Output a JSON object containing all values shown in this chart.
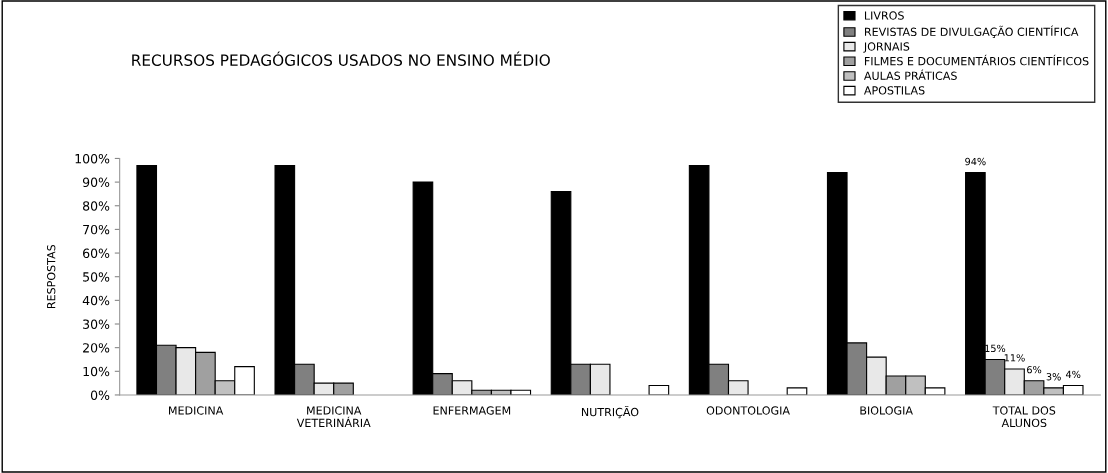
{
  "chart_data": {
    "type": "bar",
    "title": "RECURSOS PEDAGÓGICOS USADOS NO ENSINO MÉDIO",
    "ylabel": "RESPOSTAS",
    "categories": [
      "MEDICINA",
      "MEDICINA\nVETERINÁRIA",
      "ENFERMAGEM",
      "NUTRIÇÃO",
      "ODONTOLOGIA",
      "BIOLOGIA",
      "TOTAL DOS\nALUNOS"
    ],
    "series": [
      {
        "name": "LIVROS",
        "color": "#000000",
        "values": [
          97,
          97,
          90,
          86,
          97,
          94,
          94
        ],
        "value_labels": [
          null,
          null,
          null,
          null,
          null,
          null,
          "94%"
        ]
      },
      {
        "name": "REVISTAS DE DIVULGAÇÃO CIENTÍFICA",
        "color": "#808080",
        "values": [
          21,
          13,
          9,
          13,
          13,
          22,
          15
        ],
        "value_labels": [
          null,
          null,
          null,
          null,
          null,
          null,
          "15%"
        ]
      },
      {
        "name": "JORNAIS",
        "color": "#e8e8e8",
        "values": [
          20,
          5,
          6,
          13,
          6,
          16,
          11
        ],
        "value_labels": [
          null,
          null,
          null,
          null,
          null,
          null,
          "11%"
        ]
      },
      {
        "name": "FILMES E DOCUMENTÁRIOS CIENTÍFICOS",
        "color": "#a0a0a0",
        "values": [
          18,
          5,
          2,
          null,
          null,
          8,
          6
        ],
        "value_labels": [
          null,
          null,
          null,
          null,
          null,
          null,
          "6%"
        ]
      },
      {
        "name": "AULAS PRÁTICAS",
        "color": "#c0c0c0",
        "values": [
          6,
          null,
          2,
          null,
          null,
          8,
          3
        ],
        "value_labels": [
          null,
          null,
          null,
          null,
          null,
          null,
          "3%"
        ]
      },
      {
        "name": "APOSTILAS",
        "color": "#ffffff",
        "values": [
          12,
          null,
          2,
          4,
          3,
          3,
          4
        ],
        "value_labels": [
          null,
          null,
          null,
          null,
          null,
          null,
          "4%"
        ]
      }
    ],
    "ylim": [
      0,
      100
    ],
    "yticks": [
      {
        "value": 0,
        "label": "0%"
      },
      {
        "value": 10,
        "label": "10%"
      },
      {
        "value": 20,
        "label": "20%"
      },
      {
        "value": 30,
        "label": "30%"
      },
      {
        "value": 40,
        "label": "40%"
      },
      {
        "value": 50,
        "label": "50%"
      },
      {
        "value": 60,
        "label": "60%"
      },
      {
        "value": 70,
        "label": "70%"
      },
      {
        "value": 80,
        "label": "80%"
      },
      {
        "value": 90,
        "label": "90%"
      },
      {
        "value": 100,
        "label": "100%"
      }
    ],
    "grid": false,
    "legend": "top right"
  }
}
